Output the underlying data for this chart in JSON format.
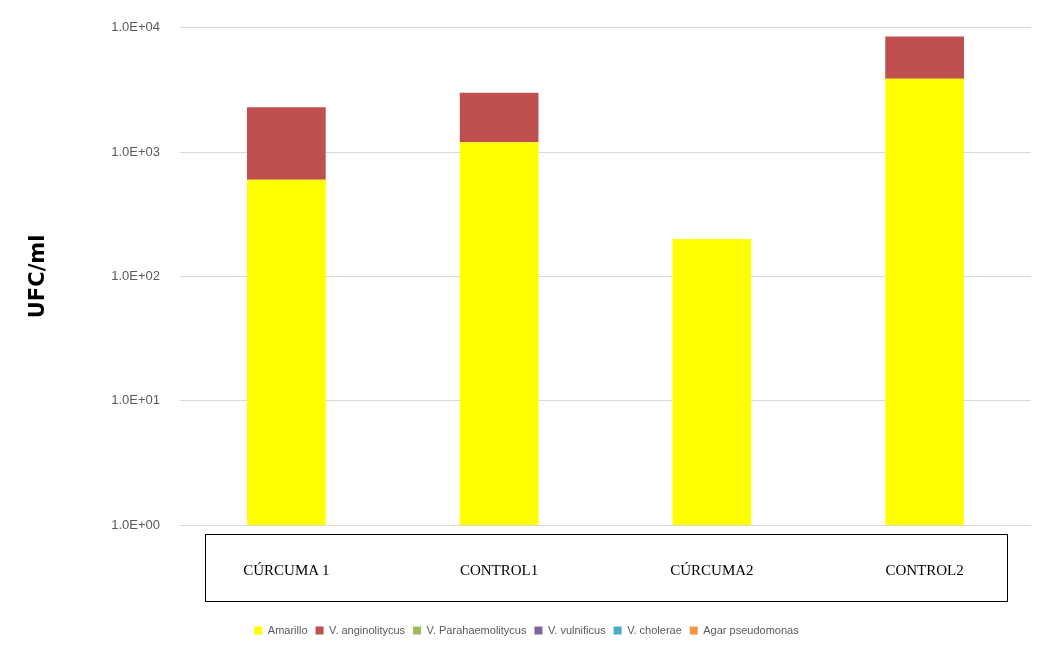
{
  "chart_data": {
    "type": "bar",
    "stacked": true,
    "log": "y",
    "ylabel": "UFC/ml",
    "categories": [
      "CÚRCUMA 1",
      "CONTROL1",
      "CÚRCUMA2",
      "CONTROL2"
    ],
    "series": [
      {
        "name": "Amarillo",
        "color": "#ffff00",
        "values": [
          600,
          1200,
          200,
          3900
        ]
      },
      {
        "name": "V. anginolitycus",
        "color": "#c0504d",
        "values": [
          1700,
          1800,
          null,
          4600
        ]
      },
      {
        "name": "V. Parahaemolitycus",
        "color": "#9bbb59",
        "values": [
          null,
          null,
          null,
          null
        ]
      },
      {
        "name": "V. vulnificus",
        "color": "#8064a2",
        "values": [
          null,
          null,
          null,
          null
        ]
      },
      {
        "name": "V. cholerae",
        "color": "#4bacc6",
        "values": [
          null,
          null,
          null,
          null
        ]
      },
      {
        "name": "Agar pseudomonas",
        "color": "#f79646",
        "values": [
          null,
          null,
          null,
          null
        ]
      }
    ],
    "ylim": [
      1,
      10000
    ],
    "yticks": [
      {
        "value": 1,
        "label": "1.0E+00"
      },
      {
        "value": 10,
        "label": "1.0E+01"
      },
      {
        "value": 100,
        "label": "1.0E+02"
      },
      {
        "value": 1000,
        "label": "1.0E+03"
      },
      {
        "value": 10000,
        "label": "1.0E+04"
      }
    ],
    "grid": "y",
    "legend": "bottom"
  }
}
